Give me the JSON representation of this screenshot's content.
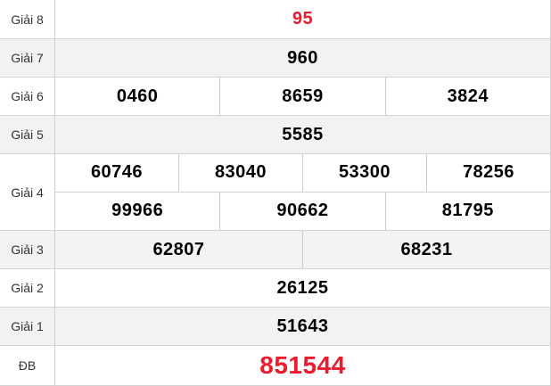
{
  "accent_color": "#ed1b2e",
  "row_alt_color": "#f2f2f2",
  "table": {
    "rows": [
      {
        "label": "Giải 8",
        "cells": [
          "95"
        ]
      },
      {
        "label": "Giải 7",
        "cells": [
          "960"
        ]
      },
      {
        "label": "Giải 6",
        "cells": [
          "0460",
          "8659",
          "3824"
        ]
      },
      {
        "label": "Giải 5",
        "cells": [
          "5585"
        ]
      },
      {
        "label": "Giải 4",
        "lines": [
          [
            "60746",
            "83040",
            "53300",
            "78256"
          ],
          [
            "99966",
            "90662",
            "81795"
          ]
        ]
      },
      {
        "label": "Giải 3",
        "cells": [
          "62807",
          "68231"
        ]
      },
      {
        "label": "Giải 2",
        "cells": [
          "26125"
        ]
      },
      {
        "label": "Giải 1",
        "cells": [
          "51643"
        ]
      },
      {
        "label": "ĐB",
        "cells": [
          "851544"
        ]
      }
    ]
  }
}
